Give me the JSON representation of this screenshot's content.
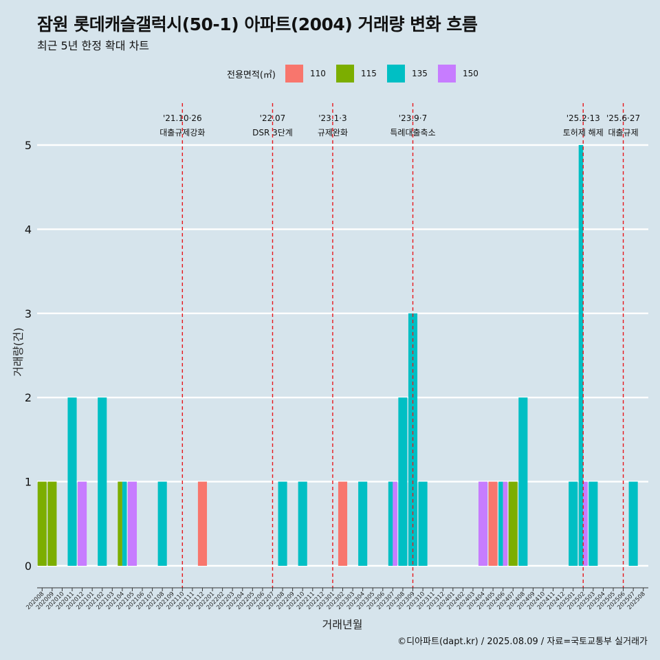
{
  "title": "잠원 롯데캐슬갤럭시(50-1) 아파트(2004) 거래량 변화 흐름",
  "subtitle": "최근 5년 한정 확대 차트",
  "footer": "©디아파트(dapt.kr) / 2025.08.09 / 자료=국토교통부 실거래가",
  "chart_data": {
    "type": "bar",
    "title": "잠원 롯데캐슬갤럭시(50-1) 아파트(2004) 거래량 변화 흐름",
    "subtitle": "최근 5년 한정 확대 차트",
    "xlabel": "거래년월",
    "ylabel": "거래량(건)",
    "ylim": [
      0,
      5
    ],
    "y_ticks": [
      0,
      1,
      2,
      3,
      4,
      5
    ],
    "grid": true,
    "legend": {
      "title": "전용면적(㎡)",
      "position": "top"
    },
    "series_colors": {
      "110": "#f8766d",
      "115": "#7cae00",
      "135": "#00bfc4",
      "150": "#c77cff"
    },
    "categories": [
      "202008",
      "202009",
      "202010",
      "202011",
      "202012",
      "202101",
      "202102",
      "202103",
      "202104",
      "202105",
      "202106",
      "202107",
      "202108",
      "202109",
      "202110",
      "202111",
      "202112",
      "202201",
      "202202",
      "202203",
      "202204",
      "202205",
      "202206",
      "202207",
      "202208",
      "202209",
      "202210",
      "202211",
      "202212",
      "202301",
      "202302",
      "202303",
      "202304",
      "202305",
      "202306",
      "202307",
      "202308",
      "202309",
      "202310",
      "202311",
      "202312",
      "202401",
      "202402",
      "202403",
      "202404",
      "202405",
      "202406",
      "202407",
      "202408",
      "202409",
      "202410",
      "202411",
      "202412",
      "202501",
      "202502",
      "202503",
      "202504",
      "202505",
      "202506",
      "202507",
      "202508"
    ],
    "bars": [
      {
        "month": "202008",
        "area": "115",
        "value": 1
      },
      {
        "month": "202009",
        "area": "115",
        "value": 1
      },
      {
        "month": "202011",
        "area": "135",
        "value": 2
      },
      {
        "month": "202012",
        "area": "150",
        "value": 1
      },
      {
        "month": "202102",
        "area": "135",
        "value": 2
      },
      {
        "month": "202104",
        "area": "115",
        "value": 1
      },
      {
        "month": "202104",
        "area": "135",
        "value": 1
      },
      {
        "month": "202105",
        "area": "150",
        "value": 1
      },
      {
        "month": "202108",
        "area": "135",
        "value": 1
      },
      {
        "month": "202112",
        "area": "110",
        "value": 1
      },
      {
        "month": "202208",
        "area": "135",
        "value": 1
      },
      {
        "month": "202210",
        "area": "135",
        "value": 1
      },
      {
        "month": "202302",
        "area": "110",
        "value": 1
      },
      {
        "month": "202304",
        "area": "135",
        "value": 1
      },
      {
        "month": "202307",
        "area": "135",
        "value": 1
      },
      {
        "month": "202307",
        "area": "150",
        "value": 1
      },
      {
        "month": "202308",
        "area": "135",
        "value": 2
      },
      {
        "month": "202309",
        "area": "135",
        "value": 3
      },
      {
        "month": "202310",
        "area": "135",
        "value": 1
      },
      {
        "month": "202404",
        "area": "150",
        "value": 1
      },
      {
        "month": "202405",
        "area": "110",
        "value": 1
      },
      {
        "month": "202406",
        "area": "135",
        "value": 1
      },
      {
        "month": "202406",
        "area": "150",
        "value": 1
      },
      {
        "month": "202407",
        "area": "115",
        "value": 1
      },
      {
        "month": "202408",
        "area": "135",
        "value": 2
      },
      {
        "month": "202501",
        "area": "135",
        "value": 1
      },
      {
        "month": "202502",
        "area": "135",
        "value": 5
      },
      {
        "month": "202502",
        "area": "150",
        "value": 1
      },
      {
        "month": "202503",
        "area": "135",
        "value": 1
      },
      {
        "month": "202507",
        "area": "135",
        "value": 1
      }
    ],
    "annotations": [
      {
        "x": "202110",
        "date": "'21.10·26",
        "label": "대출규제강화"
      },
      {
        "x": "202207",
        "date": "'22.07",
        "label": "DSR 3단계"
      },
      {
        "x": "202301",
        "date": "'23.1·3",
        "label": "규제완화"
      },
      {
        "x": "202309",
        "date": "'23.9·7",
        "label": "특례대출축소"
      },
      {
        "x": "202502",
        "date": "'25.2·13",
        "label": "토허제 해제"
      },
      {
        "x": "202506",
        "date": "'25.6·27",
        "label": "대출규제"
      }
    ]
  }
}
